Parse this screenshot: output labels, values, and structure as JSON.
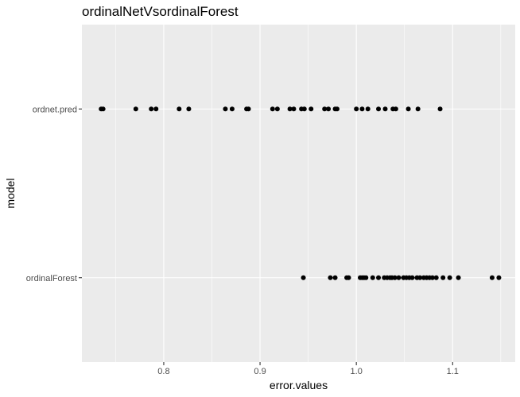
{
  "chart_data": {
    "type": "scatter",
    "title": "ordinalNetVsordinalForest",
    "xlabel": "error.values",
    "ylabel": "model",
    "xlim": [
      0.715,
      1.165
    ],
    "x_ticks": [
      "0.8",
      "0.9",
      "1.0",
      "1.1"
    ],
    "x_tick_values": [
      0.8,
      0.9,
      1.0,
      1.1
    ],
    "categories": [
      "ordinalForest",
      "ordnet.pred"
    ],
    "grid": true,
    "background": "#ebebeb",
    "grid_major_color": "#ffffff",
    "point_color": "#000000",
    "series": [
      {
        "category": "ordnet.pred",
        "x": [
          0.735,
          0.737,
          0.771,
          0.787,
          0.792,
          0.816,
          0.826,
          0.864,
          0.871,
          0.886,
          0.888,
          0.913,
          0.918,
          0.931,
          0.935,
          0.943,
          0.946,
          0.953,
          0.967,
          0.971,
          0.978,
          0.98,
          1.0,
          1.006,
          1.012,
          1.023,
          1.03,
          1.038,
          1.041,
          1.054,
          1.064,
          1.087
        ]
      },
      {
        "category": "ordinalForest",
        "x": [
          0.945,
          0.973,
          0.978,
          0.99,
          0.992,
          1.004,
          1.006,
          1.008,
          1.01,
          1.017,
          1.023,
          1.029,
          1.032,
          1.035,
          1.037,
          1.04,
          1.044,
          1.049,
          1.052,
          1.055,
          1.058,
          1.063,
          1.066,
          1.07,
          1.073,
          1.076,
          1.079,
          1.083,
          1.09,
          1.097,
          1.106,
          1.141,
          1.148
        ]
      }
    ]
  }
}
